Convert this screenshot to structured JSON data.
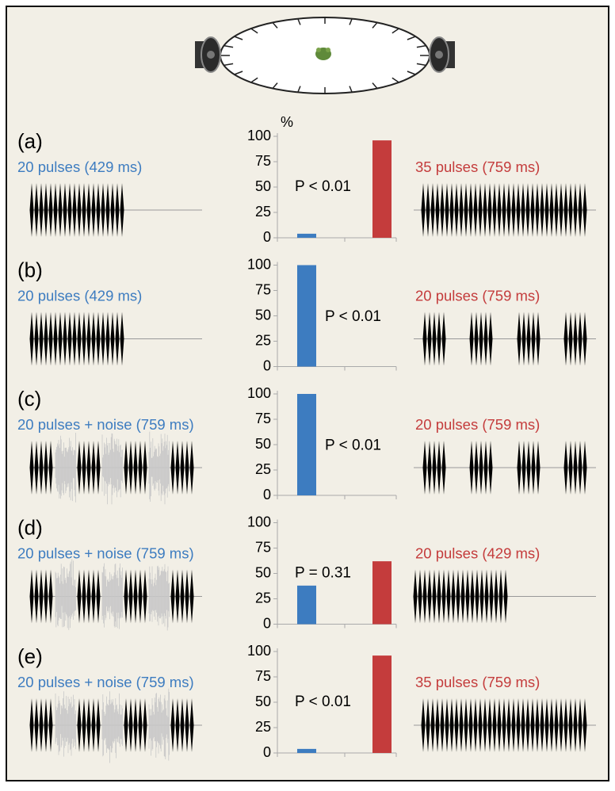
{
  "chart_data": [
    {
      "type": "bar",
      "panel": "(a)",
      "ylabel": "%",
      "left_label": "20 pulses (429 ms)",
      "right_label": "35 pulses (759 ms)",
      "annotation": "P < 0.01",
      "categories": [
        null,
        null
      ],
      "values": [
        4,
        96
      ],
      "colors": [
        "#3d7cc0",
        "#c43c3c"
      ],
      "ylim": [
        0,
        100
      ],
      "yticks": [
        0,
        25,
        50,
        75,
        100
      ]
    },
    {
      "type": "bar",
      "panel": "(b)",
      "left_label": "20 pulses (429 ms)",
      "right_label": "20 pulses (759 ms)",
      "annotation": "P < 0.01",
      "categories": [
        null,
        null
      ],
      "values": [
        100,
        0
      ],
      "colors": [
        "#3d7cc0",
        "#c43c3c"
      ],
      "ylim": [
        0,
        100
      ],
      "yticks": [
        0,
        25,
        50,
        75,
        100
      ]
    },
    {
      "type": "bar",
      "panel": "(c)",
      "left_label": "20 pulses + noise (759 ms)",
      "right_label": "20 pulses (759 ms)",
      "annotation": "P < 0.01",
      "categories": [
        null,
        null
      ],
      "values": [
        100,
        0
      ],
      "colors": [
        "#3d7cc0",
        "#c43c3c"
      ],
      "ylim": [
        0,
        100
      ],
      "yticks": [
        0,
        25,
        50,
        75,
        100
      ]
    },
    {
      "type": "bar",
      "panel": "(d)",
      "left_label": "20 pulses + noise (759 ms)",
      "right_label": "20 pulses (429 ms)",
      "annotation": "P = 0.31",
      "categories": [
        null,
        null
      ],
      "values": [
        38,
        62
      ],
      "colors": [
        "#3d7cc0",
        "#c43c3c"
      ],
      "ylim": [
        0,
        100
      ],
      "yticks": [
        0,
        25,
        50,
        75,
        100
      ]
    },
    {
      "type": "bar",
      "panel": "(e)",
      "left_label": "20 pulses + noise (759 ms)",
      "right_label": "35 pulses (759 ms)",
      "annotation": "P < 0.01",
      "categories": [
        null,
        null
      ],
      "values": [
        4,
        96
      ],
      "colors": [
        "#3d7cc0",
        "#c43c3c"
      ],
      "ylim": [
        0,
        100
      ],
      "yticks": [
        0,
        25,
        50,
        75,
        100
      ]
    }
  ]
}
